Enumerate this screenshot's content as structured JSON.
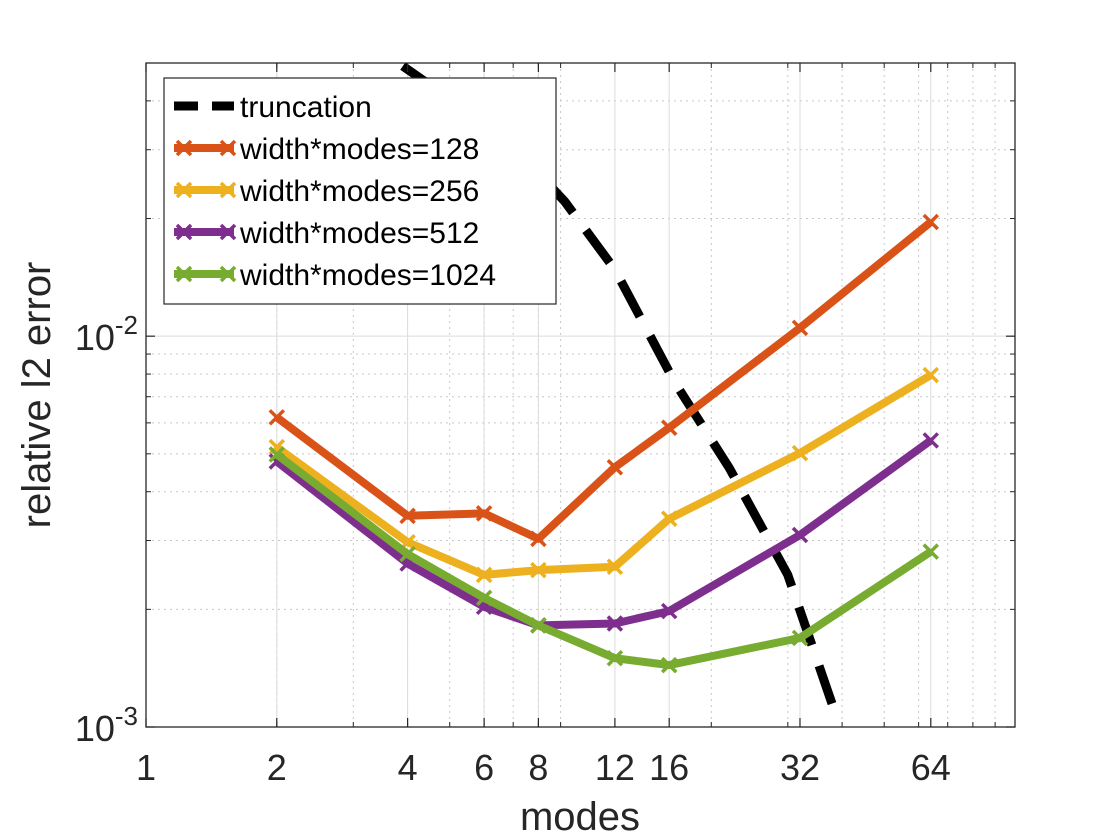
{
  "chart_data": {
    "type": "line",
    "title": "",
    "xlabel": "modes",
    "ylabel": "relative l2 error",
    "xscale": "log",
    "yscale": "log",
    "xlim": [
      1,
      100
    ],
    "ylim": [
      0.001,
      0.05
    ],
    "grid": true,
    "minor_grid": true,
    "legend_position": "top-left",
    "x_ticks": [
      1,
      2,
      4,
      6,
      8,
      12,
      16,
      32,
      64
    ],
    "x_tick_labels": [
      "1",
      "2",
      "4",
      "6",
      "8",
      "12",
      "16",
      "32",
      "64"
    ],
    "y_ticks": [
      {
        "value": 0.01,
        "base": "10",
        "exponent": "-2"
      },
      {
        "value": 0.001,
        "base": "10",
        "exponent": "-3"
      }
    ],
    "series": [
      {
        "name": "truncation",
        "color": "#000000",
        "style": "dashed",
        "marker": "none",
        "x": [
          3.9,
          6.7,
          9.2,
          12.0,
          16.5,
          22.0,
          30.0,
          38.0
        ],
        "y": [
          0.0491,
          0.0323,
          0.0221,
          0.0148,
          0.0076,
          0.0046,
          0.00245,
          0.00114
        ]
      },
      {
        "name": "width*modes=128",
        "color": "#D95319",
        "style": "solid",
        "marker": "x",
        "x": [
          2,
          4,
          6,
          8,
          12,
          16,
          32,
          64
        ],
        "y": [
          0.0062,
          0.00347,
          0.00352,
          0.00303,
          0.00462,
          0.00583,
          0.0105,
          0.0196
        ]
      },
      {
        "name": "width*modes=256",
        "color": "#EDB120",
        "style": "solid",
        "marker": "x",
        "x": [
          2,
          4,
          6,
          8,
          12,
          16,
          32,
          64
        ],
        "y": [
          0.0052,
          0.00297,
          0.00245,
          0.00252,
          0.00257,
          0.00341,
          0.00502,
          0.00795
        ]
      },
      {
        "name": "width*modes=512",
        "color": "#7E2F8E",
        "style": "solid",
        "marker": "x",
        "x": [
          2,
          4,
          6,
          8,
          12,
          16,
          32,
          64
        ],
        "y": [
          0.00478,
          0.00262,
          0.00203,
          0.00182,
          0.00184,
          0.00198,
          0.0031,
          0.00541
        ]
      },
      {
        "name": "width*modes=1024",
        "color": "#77AC30",
        "style": "solid",
        "marker": "x",
        "x": [
          2,
          4,
          6,
          8,
          12,
          16,
          32,
          64
        ],
        "y": [
          0.00498,
          0.00277,
          0.00214,
          0.00182,
          0.0015,
          0.00144,
          0.00169,
          0.00281
        ]
      }
    ]
  }
}
